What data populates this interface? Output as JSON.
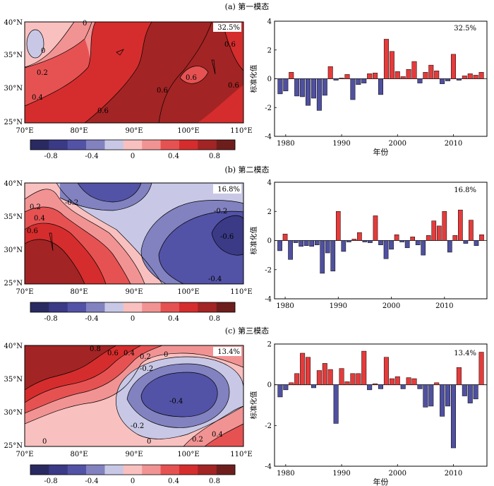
{
  "panels": [
    {
      "title": "(a) 第一模态",
      "variance": "32.5%",
      "map": {
        "xticks": [
          "70°E",
          "80°E",
          "90°E",
          "100°E",
          "110°E"
        ],
        "yticks": [
          "40°N",
          "35°N",
          "30°N",
          "25°N"
        ],
        "contour_labels": [
          "0",
          "0",
          "0.2",
          "0.4",
          "0.6",
          "0.6",
          "0.6",
          "0.6",
          "0.6"
        ]
      },
      "colorbar": {
        "ticks": [
          "-0.8",
          "-0.4",
          "0",
          "0.4",
          "0.8"
        ]
      },
      "chart_data": {
        "type": "bar",
        "x_start": 1979,
        "xticks": [
          1980,
          1990,
          2000,
          2010
        ],
        "yticks": [
          4,
          2,
          0,
          -2,
          -4
        ],
        "ylim": [
          -4,
          4
        ],
        "xlabel": "年份",
        "ylabel": "标准化值",
        "values": [
          -1.05,
          -0.85,
          0.45,
          -1.2,
          -1.25,
          -1.85,
          -1.35,
          -2.2,
          -1.15,
          0.85,
          -0.1,
          0.05,
          0.3,
          -1.45,
          -0.4,
          -0.3,
          0.35,
          0.4,
          -1.1,
          2.75,
          1.9,
          0.5,
          0.15,
          0.65,
          1.2,
          -0.3,
          0.45,
          0.95,
          0.55,
          -0.35,
          -0.15,
          1.7,
          -0.1,
          0.2,
          0.35,
          0.25,
          0.45
        ]
      }
    },
    {
      "title": "(b) 第二模态",
      "variance": "16.8%",
      "map": {
        "xticks": [
          "70°E",
          "80°E",
          "90°E",
          "100°E",
          "110°E"
        ],
        "yticks": [
          "40°N",
          "35°N",
          "30°N",
          "25°N"
        ],
        "contour_labels": [
          "-0.2",
          "-0.2",
          "0.2",
          "0.4",
          "0.6",
          "-0.6",
          "-0.4"
        ]
      },
      "colorbar": {
        "ticks": [
          "-0.8",
          "-0.4",
          "0",
          "0.4",
          "0.8"
        ]
      },
      "chart_data": {
        "type": "bar",
        "x_start": 1979,
        "xticks": [
          1980,
          1990,
          2000,
          2010
        ],
        "yticks": [
          4,
          2,
          0,
          -2,
          -4
        ],
        "ylim": [
          -4,
          4
        ],
        "xlabel": "",
        "ylabel": "标准化值",
        "values": [
          -0.7,
          0.45,
          -1.3,
          -0.15,
          -0.4,
          -0.35,
          -0.4,
          -0.3,
          -2.25,
          -0.85,
          -2.1,
          2.0,
          -0.75,
          -0.1,
          0.1,
          0.55,
          -0.1,
          -0.15,
          1.7,
          -0.3,
          -1.25,
          -0.6,
          0.4,
          -0.1,
          -0.5,
          0.25,
          -0.3,
          -1.0,
          0.35,
          1.35,
          1.0,
          2.0,
          -0.8,
          0.35,
          2.1,
          -0.2,
          1.4,
          -0.35,
          0.4
        ]
      }
    },
    {
      "title": "(c) 第三模态",
      "variance": "13.4%",
      "map": {
        "xticks": [
          "70°E",
          "80°E",
          "90°E",
          "100°E",
          "110°E"
        ],
        "yticks": [
          "40°N",
          "35°N",
          "30°N",
          "25°N"
        ],
        "contour_labels": [
          "0.8",
          "0.6",
          "0.4",
          "0.2",
          "0",
          "-0.2",
          "-0.4",
          "-0.2",
          "0.2",
          "0.4",
          "0",
          "0"
        ]
      },
      "colorbar": {
        "ticks": [
          "-0.8",
          "-0.4",
          "0",
          "0.4",
          "0.8"
        ]
      },
      "chart_data": {
        "type": "bar",
        "x_start": 1979,
        "xticks": [
          1980,
          1990,
          2000,
          2010
        ],
        "yticks": [
          2,
          0,
          -2,
          -4
        ],
        "ylim": [
          -4,
          2
        ],
        "xlabel": "年份",
        "ylabel": "标准化值",
        "values": [
          -0.6,
          -0.25,
          0.1,
          0.55,
          1.55,
          1.35,
          -0.15,
          0.7,
          1.05,
          0.75,
          -1.9,
          0.8,
          0.15,
          0.55,
          0.55,
          1.65,
          -0.25,
          0.05,
          -0.2,
          1.35,
          0.3,
          0.4,
          -0.2,
          0.35,
          0.3,
          -0.2,
          -1.1,
          -1.05,
          0.1,
          -1.55,
          -1.05,
          -3.1,
          0.85,
          -0.55,
          -0.9,
          -0.7,
          1.6
        ]
      }
    }
  ],
  "colors": {
    "positive": "#e53b3b",
    "negative": "#5050a0",
    "c_neg08": "#2a2a62",
    "c_neg06": "#3a3a86",
    "c_neg04": "#5252a6",
    "c_neg02": "#8282c0",
    "c_neg00": "#c8c8e6",
    "c_pos00": "#f9c0c0",
    "c_pos02": "#f29393",
    "c_pos04": "#e65252",
    "c_pos06": "#d52d2d",
    "c_pos08": "#a32424",
    "c_pos10": "#6e1d1d"
  }
}
